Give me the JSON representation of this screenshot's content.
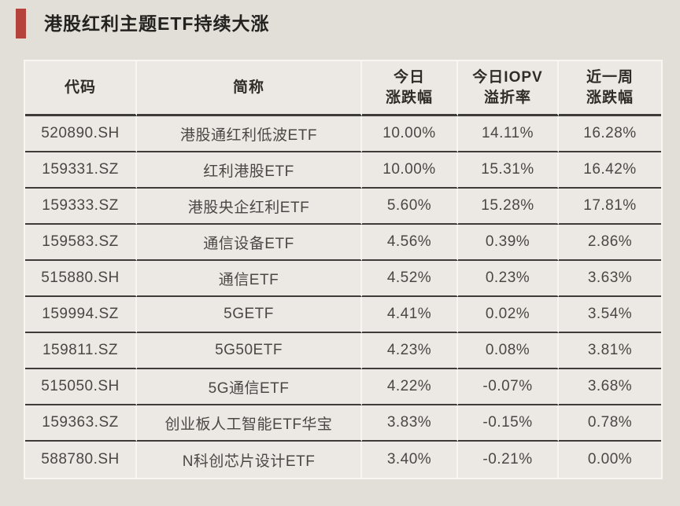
{
  "title": "港股红利主题ETF持续大涨",
  "colors": {
    "accent_red": "#b5423b",
    "page_background": "#e2dfd9",
    "table_background": "#ece9e4",
    "dark_rule": "#3e3c39",
    "light_divider": "#f8f6f2"
  },
  "table": {
    "header_display": [
      "代码",
      "简称",
      "今日\n涨跌幅",
      "今日IOPV\n溢折率",
      "近一周\n涨跌幅"
    ]
  },
  "chart_data": {
    "type": "table",
    "title": "港股红利主题ETF持续大涨",
    "columns": [
      "代码",
      "简称",
      "今日涨跌幅",
      "今日IOPV溢折率",
      "近一周涨跌幅"
    ],
    "rows": [
      [
        "520890.SH",
        "港股通红利低波ETF",
        "10.00%",
        "14.11%",
        "16.28%"
      ],
      [
        "159331.SZ",
        "红利港股ETF",
        "10.00%",
        "15.31%",
        "16.42%"
      ],
      [
        "159333.SZ",
        "港股央企红利ETF",
        "5.60%",
        "15.28%",
        "17.81%"
      ],
      [
        "159583.SZ",
        "通信设备ETF",
        "4.56%",
        "0.39%",
        "2.86%"
      ],
      [
        "515880.SH",
        "通信ETF",
        "4.52%",
        "0.23%",
        "3.63%"
      ],
      [
        "159994.SZ",
        "5GETF",
        "4.41%",
        "0.02%",
        "3.54%"
      ],
      [
        "159811.SZ",
        "5G50ETF",
        "4.23%",
        "0.08%",
        "3.81%"
      ],
      [
        "515050.SH",
        "5G通信ETF",
        "4.22%",
        "-0.07%",
        "3.68%"
      ],
      [
        "159363.SZ",
        "创业板人工智能ETF华宝",
        "3.83%",
        "-0.15%",
        "0.78%"
      ],
      [
        "588780.SH",
        "N科创芯片设计ETF",
        "3.40%",
        "-0.21%",
        "0.00%"
      ]
    ]
  }
}
